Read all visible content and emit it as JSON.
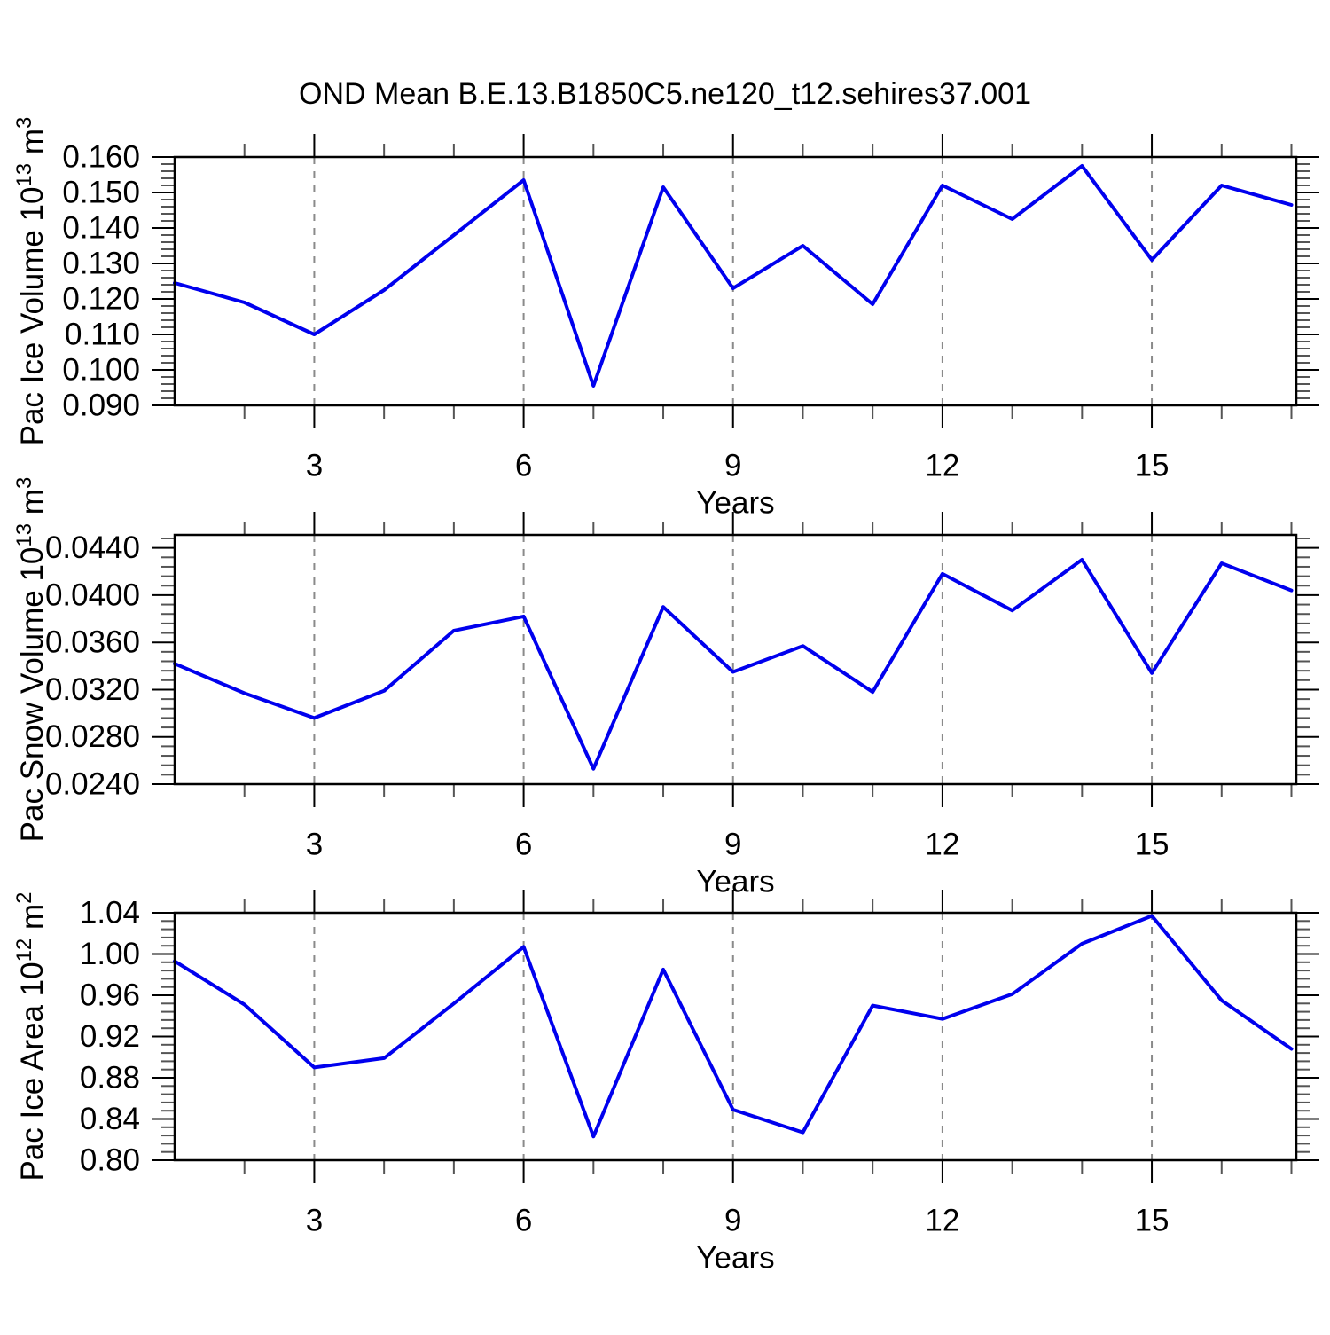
{
  "title": "OND Mean B.E.13.B1850C5.ne120_t12.sehires37.001",
  "colors": {
    "line": "#0000ee",
    "grid": "#8a8a8a",
    "axis": "#000000",
    "minor_tick": "#555555",
    "background": "#ffffff"
  },
  "chart_data": [
    {
      "type": "line",
      "ylabel": "Pac Ice Volume 10^13 m^3",
      "xlabel": "Years",
      "x": [
        1,
        2,
        3,
        4,
        5,
        6,
        7,
        8,
        9,
        10,
        11,
        12,
        13,
        14,
        15,
        16,
        17
      ],
      "values": [
        0.1245,
        0.119,
        0.11,
        0.1225,
        0.138,
        0.1535,
        0.0955,
        0.1515,
        0.123,
        0.135,
        0.1185,
        0.152,
        0.1425,
        0.1575,
        0.131,
        0.152,
        0.1465
      ],
      "xlim": [
        1,
        17.07
      ],
      "ylim": [
        0.09,
        0.16
      ],
      "xtick_values": [
        3,
        6,
        9,
        12,
        15
      ],
      "xtick_labels": [
        "3",
        "6",
        "9",
        "12",
        "15"
      ],
      "xminor_every": 1,
      "ytick_values": [
        0.16,
        0.15,
        0.14,
        0.13,
        0.12,
        0.11,
        0.1,
        0.09
      ],
      "ytick_labels": [
        "0.160",
        "0.150",
        "0.140",
        "0.130",
        "0.120",
        "0.110",
        "0.100",
        "0.090"
      ],
      "yminor_step": 0.002,
      "grid_at": [
        3,
        6,
        9,
        12,
        15
      ],
      "legend": "none"
    },
    {
      "type": "line",
      "ylabel": "Pac Snow Volume 10^13 m^3",
      "xlabel": "Years",
      "x": [
        1,
        2,
        3,
        4,
        5,
        6,
        7,
        8,
        9,
        10,
        11,
        12,
        13,
        14,
        15,
        16,
        17
      ],
      "values": [
        0.0342,
        0.0317,
        0.0296,
        0.0319,
        0.037,
        0.0382,
        0.0253,
        0.039,
        0.0335,
        0.0357,
        0.0318,
        0.0418,
        0.0387,
        0.043,
        0.0334,
        0.0427,
        0.0404
      ],
      "xlim": [
        1,
        17.07
      ],
      "ylim": [
        0.024,
        0.0451
      ],
      "xtick_values": [
        3,
        6,
        9,
        12,
        15
      ],
      "xtick_labels": [
        "3",
        "6",
        "9",
        "12",
        "15"
      ],
      "xminor_every": 1,
      "ytick_values": [
        0.044,
        0.04,
        0.036,
        0.032,
        0.028,
        0.024
      ],
      "ytick_labels": [
        "0.0440",
        "0.0400",
        "0.0360",
        "0.0320",
        "0.0280",
        "0.0240"
      ],
      "yminor_step": 0.0008,
      "grid_at": [
        3,
        6,
        9,
        12,
        15
      ],
      "legend": "none"
    },
    {
      "type": "line",
      "ylabel": "Pac Ice Area 10^12 m^2",
      "xlabel": "Years",
      "x": [
        1,
        2,
        3,
        4,
        5,
        6,
        7,
        8,
        9,
        10,
        11,
        12,
        13,
        14,
        15,
        16,
        17
      ],
      "values": [
        0.993,
        0.951,
        0.89,
        0.899,
        0.952,
        1.007,
        0.823,
        0.985,
        0.849,
        0.827,
        0.95,
        0.937,
        0.961,
        1.01,
        1.037,
        0.955,
        0.908
      ],
      "xlim": [
        1,
        17.07
      ],
      "ylim": [
        0.8,
        1.04
      ],
      "xtick_values": [
        3,
        6,
        9,
        12,
        15
      ],
      "xtick_labels": [
        "3",
        "6",
        "9",
        "12",
        "15"
      ],
      "xminor_every": 1,
      "ytick_values": [
        1.04,
        1.0,
        0.96,
        0.92,
        0.88,
        0.84,
        0.8
      ],
      "ytick_labels": [
        "1.04",
        "1.00",
        "0.96",
        "0.92",
        "0.88",
        "0.84",
        "0.80"
      ],
      "yminor_step": 0.008,
      "grid_at": [
        3,
        6,
        9,
        12,
        15
      ],
      "legend": "none"
    }
  ]
}
